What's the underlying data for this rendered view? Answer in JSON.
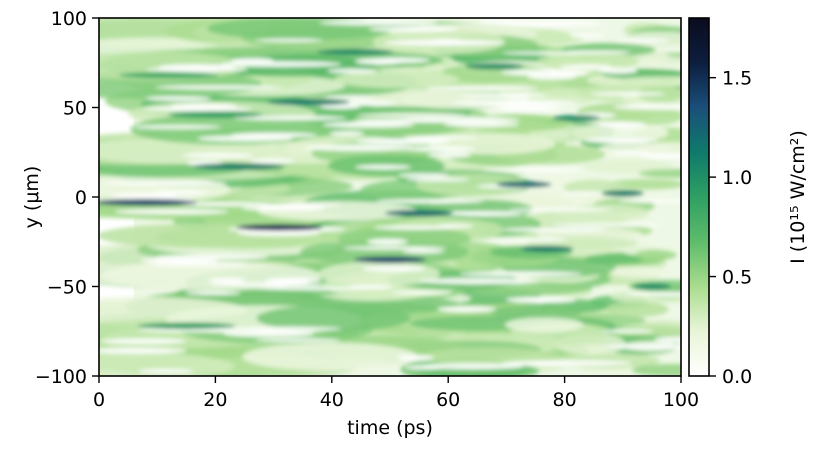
{
  "chart_data": {
    "type": "heatmap",
    "title": "",
    "xlabel": "time (ps)",
    "ylabel": "y (μm)",
    "xlim": [
      0,
      100
    ],
    "ylim": [
      -100,
      100
    ],
    "x_ticks": [
      0,
      20,
      40,
      60,
      80,
      100
    ],
    "y_ticks": [
      -100,
      -50,
      0,
      50,
      100
    ],
    "x_tick_labels": [
      "0",
      "20",
      "40",
      "60",
      "80",
      "100"
    ],
    "y_tick_labels": [
      "−100",
      "−50",
      "0",
      "50",
      "100"
    ],
    "data_x_start": 6,
    "colormap": [
      "#ffffff",
      "#e8f5d8",
      "#a9dc8e",
      "#5ebc6a",
      "#2ea063",
      "#0f7a6b",
      "#1a4f7a",
      "#0d1e3e",
      "#0b0c1f"
    ],
    "colorbar": {
      "label": "I (10¹⁵ W/cm²)",
      "vmin": 0.0,
      "vmax": 1.8,
      "ticks": [
        0.0,
        0.5,
        1.0,
        1.5
      ],
      "tick_labels": [
        "0.0",
        "0.5",
        "1.0",
        "1.5"
      ]
    },
    "intensity_streaks": [
      {
        "t": 8,
        "y": -3,
        "value": 1.4
      },
      {
        "t": 12,
        "y": 68,
        "value": 0.8
      },
      {
        "t": 15,
        "y": -72,
        "value": 0.9
      },
      {
        "t": 20,
        "y": 46,
        "value": 0.9
      },
      {
        "t": 24,
        "y": 17,
        "value": 1.1
      },
      {
        "t": 31,
        "y": -17,
        "value": 1.5
      },
      {
        "t": 36,
        "y": 53,
        "value": 1.1
      },
      {
        "t": 44,
        "y": 81,
        "value": 1.0
      },
      {
        "t": 50,
        "y": -35,
        "value": 1.4
      },
      {
        "t": 55,
        "y": -9,
        "value": 1.2
      },
      {
        "t": 68,
        "y": 73,
        "value": 1.0
      },
      {
        "t": 73,
        "y": 7,
        "value": 1.2
      },
      {
        "t": 77,
        "y": -29,
        "value": 1.1
      },
      {
        "t": 82,
        "y": 44,
        "value": 1.0
      },
      {
        "t": 90,
        "y": 2,
        "value": 1.1
      },
      {
        "t": 95,
        "y": -50,
        "value": 1.0
      }
    ]
  }
}
